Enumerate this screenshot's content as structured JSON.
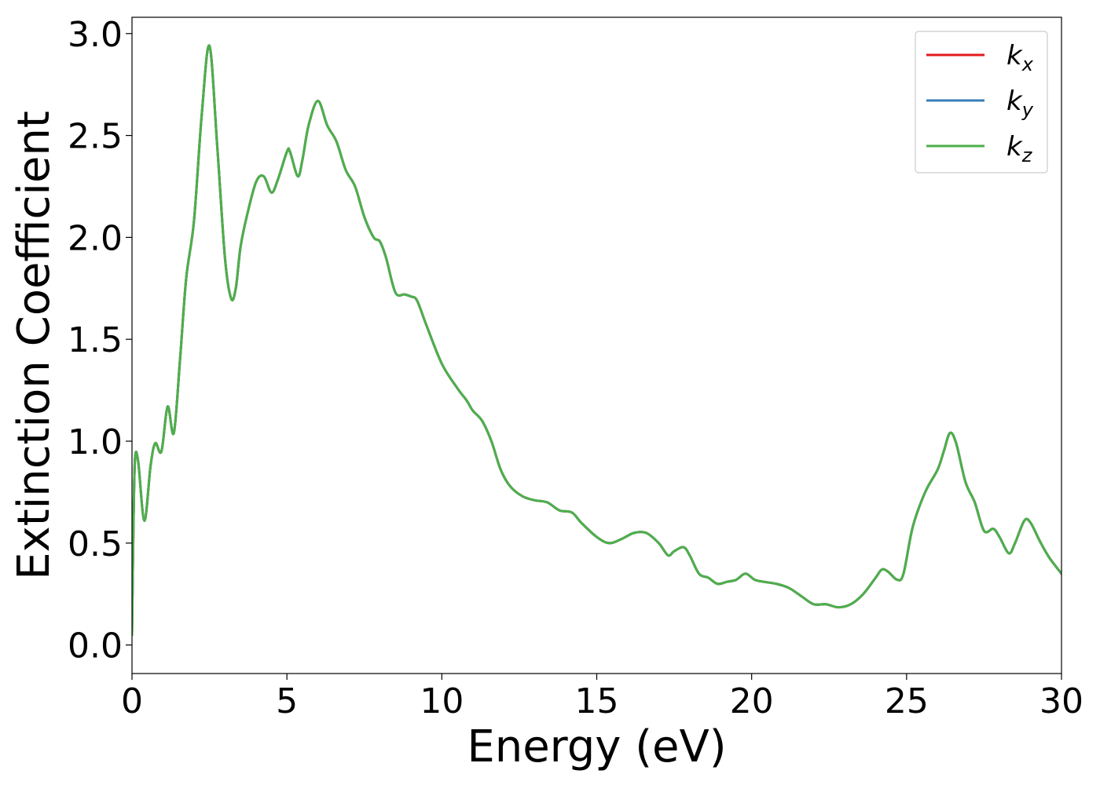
{
  "chart_data": {
    "type": "line",
    "title": "",
    "xlabel": "Energy (eV)",
    "ylabel": "Extinction Coefficient",
    "xlim": [
      0,
      30
    ],
    "ylim": [
      -0.14,
      3.08
    ],
    "xticks": [
      0,
      5,
      10,
      15,
      20,
      25,
      30
    ],
    "xtick_labels": [
      "0",
      "5",
      "10",
      "15",
      "20",
      "25",
      "30"
    ],
    "yticks": [
      0.0,
      0.5,
      1.0,
      1.5,
      2.0,
      2.5,
      3.0
    ],
    "ytick_labels": [
      "0.0",
      "0.5",
      "1.0",
      "1.5",
      "2.0",
      "2.5",
      "3.0"
    ],
    "grid": false,
    "legend_position": "top-right",
    "x": [
      0,
      0.05,
      0.1,
      0.2,
      0.4,
      0.6,
      0.75,
      0.95,
      1.15,
      1.35,
      1.55,
      1.75,
      2.0,
      2.25,
      2.5,
      2.75,
      3.0,
      3.2,
      3.35,
      3.5,
      3.7,
      4.0,
      4.25,
      4.5,
      4.7,
      5.0,
      5.1,
      5.35,
      5.5,
      5.7,
      6.0,
      6.3,
      6.6,
      6.9,
      7.2,
      7.5,
      7.8,
      8.0,
      8.2,
      8.5,
      8.8,
      9.0,
      9.2,
      9.5,
      10.0,
      10.5,
      10.8,
      11.0,
      11.3,
      11.6,
      11.9,
      12.2,
      12.6,
      13.0,
      13.4,
      13.8,
      14.2,
      14.5,
      15.0,
      15.4,
      15.8,
      16.2,
      16.6,
      17.0,
      17.3,
      17.5,
      17.8,
      18.0,
      18.3,
      18.6,
      18.9,
      19.2,
      19.5,
      19.8,
      20.1,
      20.4,
      20.8,
      21.2,
      21.6,
      22.0,
      22.4,
      22.8,
      23.2,
      23.6,
      24.0,
      24.2,
      24.4,
      24.7,
      24.9,
      25.2,
      25.6,
      26.0,
      26.2,
      26.4,
      26.6,
      26.9,
      27.2,
      27.5,
      27.8,
      28.0,
      28.3,
      28.5,
      28.8,
      29.0,
      29.3,
      29.6,
      30.0
    ],
    "series": [
      {
        "name": "k_x",
        "label_base": "k",
        "label_sub": "x",
        "color": "#e41a1c",
        "values": [
          0.05,
          0.62,
          0.92,
          0.9,
          0.61,
          0.88,
          0.99,
          0.95,
          1.17,
          1.04,
          1.4,
          1.8,
          2.08,
          2.6,
          2.94,
          2.45,
          1.9,
          1.7,
          1.75,
          1.95,
          2.1,
          2.27,
          2.3,
          2.22,
          2.28,
          2.42,
          2.42,
          2.3,
          2.38,
          2.55,
          2.67,
          2.55,
          2.47,
          2.33,
          2.25,
          2.1,
          2.0,
          1.98,
          1.9,
          1.73,
          1.72,
          1.71,
          1.69,
          1.57,
          1.38,
          1.26,
          1.2,
          1.15,
          1.1,
          1.0,
          0.86,
          0.78,
          0.73,
          0.71,
          0.7,
          0.66,
          0.65,
          0.6,
          0.53,
          0.5,
          0.52,
          0.55,
          0.55,
          0.5,
          0.44,
          0.46,
          0.48,
          0.44,
          0.35,
          0.33,
          0.3,
          0.31,
          0.32,
          0.35,
          0.32,
          0.31,
          0.3,
          0.28,
          0.24,
          0.2,
          0.2,
          0.185,
          0.2,
          0.25,
          0.33,
          0.37,
          0.36,
          0.32,
          0.35,
          0.58,
          0.75,
          0.86,
          0.95,
          1.04,
          0.99,
          0.8,
          0.7,
          0.56,
          0.57,
          0.53,
          0.45,
          0.5,
          0.61,
          0.6,
          0.51,
          0.43,
          0.35
        ]
      },
      {
        "name": "k_y",
        "label_base": "k",
        "label_sub": "y",
        "color": "#377eb8",
        "values": [
          0.05,
          0.62,
          0.92,
          0.9,
          0.61,
          0.88,
          0.99,
          0.95,
          1.17,
          1.04,
          1.4,
          1.8,
          2.08,
          2.6,
          2.94,
          2.45,
          1.9,
          1.7,
          1.75,
          1.95,
          2.1,
          2.27,
          2.3,
          2.22,
          2.28,
          2.42,
          2.42,
          2.3,
          2.38,
          2.55,
          2.67,
          2.55,
          2.47,
          2.33,
          2.25,
          2.1,
          2.0,
          1.98,
          1.9,
          1.73,
          1.72,
          1.71,
          1.69,
          1.57,
          1.38,
          1.26,
          1.2,
          1.15,
          1.1,
          1.0,
          0.86,
          0.78,
          0.73,
          0.71,
          0.7,
          0.66,
          0.65,
          0.6,
          0.53,
          0.5,
          0.52,
          0.55,
          0.55,
          0.5,
          0.44,
          0.46,
          0.48,
          0.44,
          0.35,
          0.33,
          0.3,
          0.31,
          0.32,
          0.35,
          0.32,
          0.31,
          0.3,
          0.28,
          0.24,
          0.2,
          0.2,
          0.185,
          0.2,
          0.25,
          0.33,
          0.37,
          0.36,
          0.32,
          0.35,
          0.58,
          0.75,
          0.86,
          0.95,
          1.04,
          0.99,
          0.8,
          0.7,
          0.56,
          0.57,
          0.53,
          0.45,
          0.5,
          0.61,
          0.6,
          0.51,
          0.43,
          0.35
        ]
      },
      {
        "name": "k_z",
        "label_base": "k",
        "label_sub": "z",
        "color": "#4daf4a",
        "values": [
          0.05,
          0.62,
          0.92,
          0.9,
          0.61,
          0.88,
          0.99,
          0.95,
          1.17,
          1.04,
          1.4,
          1.8,
          2.08,
          2.6,
          2.94,
          2.45,
          1.9,
          1.7,
          1.75,
          1.95,
          2.1,
          2.27,
          2.3,
          2.22,
          2.28,
          2.42,
          2.42,
          2.3,
          2.38,
          2.55,
          2.67,
          2.55,
          2.47,
          2.33,
          2.25,
          2.1,
          2.0,
          1.98,
          1.9,
          1.73,
          1.72,
          1.71,
          1.69,
          1.57,
          1.38,
          1.26,
          1.2,
          1.15,
          1.1,
          1.0,
          0.86,
          0.78,
          0.73,
          0.71,
          0.7,
          0.66,
          0.65,
          0.6,
          0.53,
          0.5,
          0.52,
          0.55,
          0.55,
          0.5,
          0.44,
          0.46,
          0.48,
          0.44,
          0.35,
          0.33,
          0.3,
          0.31,
          0.32,
          0.35,
          0.32,
          0.31,
          0.3,
          0.28,
          0.24,
          0.2,
          0.2,
          0.185,
          0.2,
          0.25,
          0.33,
          0.37,
          0.36,
          0.32,
          0.35,
          0.58,
          0.75,
          0.86,
          0.95,
          1.04,
          0.99,
          0.8,
          0.7,
          0.56,
          0.57,
          0.53,
          0.45,
          0.5,
          0.61,
          0.6,
          0.51,
          0.43,
          0.35
        ]
      }
    ]
  }
}
